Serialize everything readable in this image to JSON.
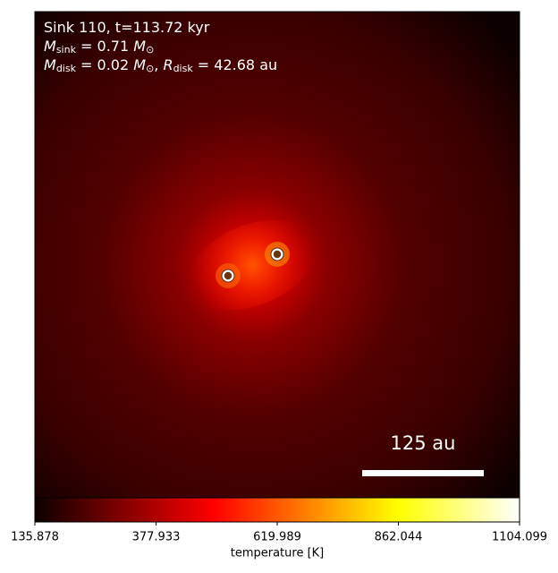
{
  "chart_data": {
    "type": "image",
    "annotations": [
      [
        "Sink 110, t=113.72 kyr"
      ],
      [
        "M",
        "sink",
        " = 0.71 ",
        "M",
        "⊙"
      ],
      [
        "M",
        "disk",
        " = 0.02 ",
        "M",
        "⊙",
        ", ",
        "R",
        "disk",
        " = 42.68 au"
      ]
    ],
    "scale_bar_label": "125 au",
    "cmap": "hot",
    "colorbar_label": "temperature [K]",
    "clim": [
      135.878,
      1104.099
    ],
    "cticks": [
      135.878,
      377.933,
      619.989,
      862.044,
      1104.099
    ]
  }
}
